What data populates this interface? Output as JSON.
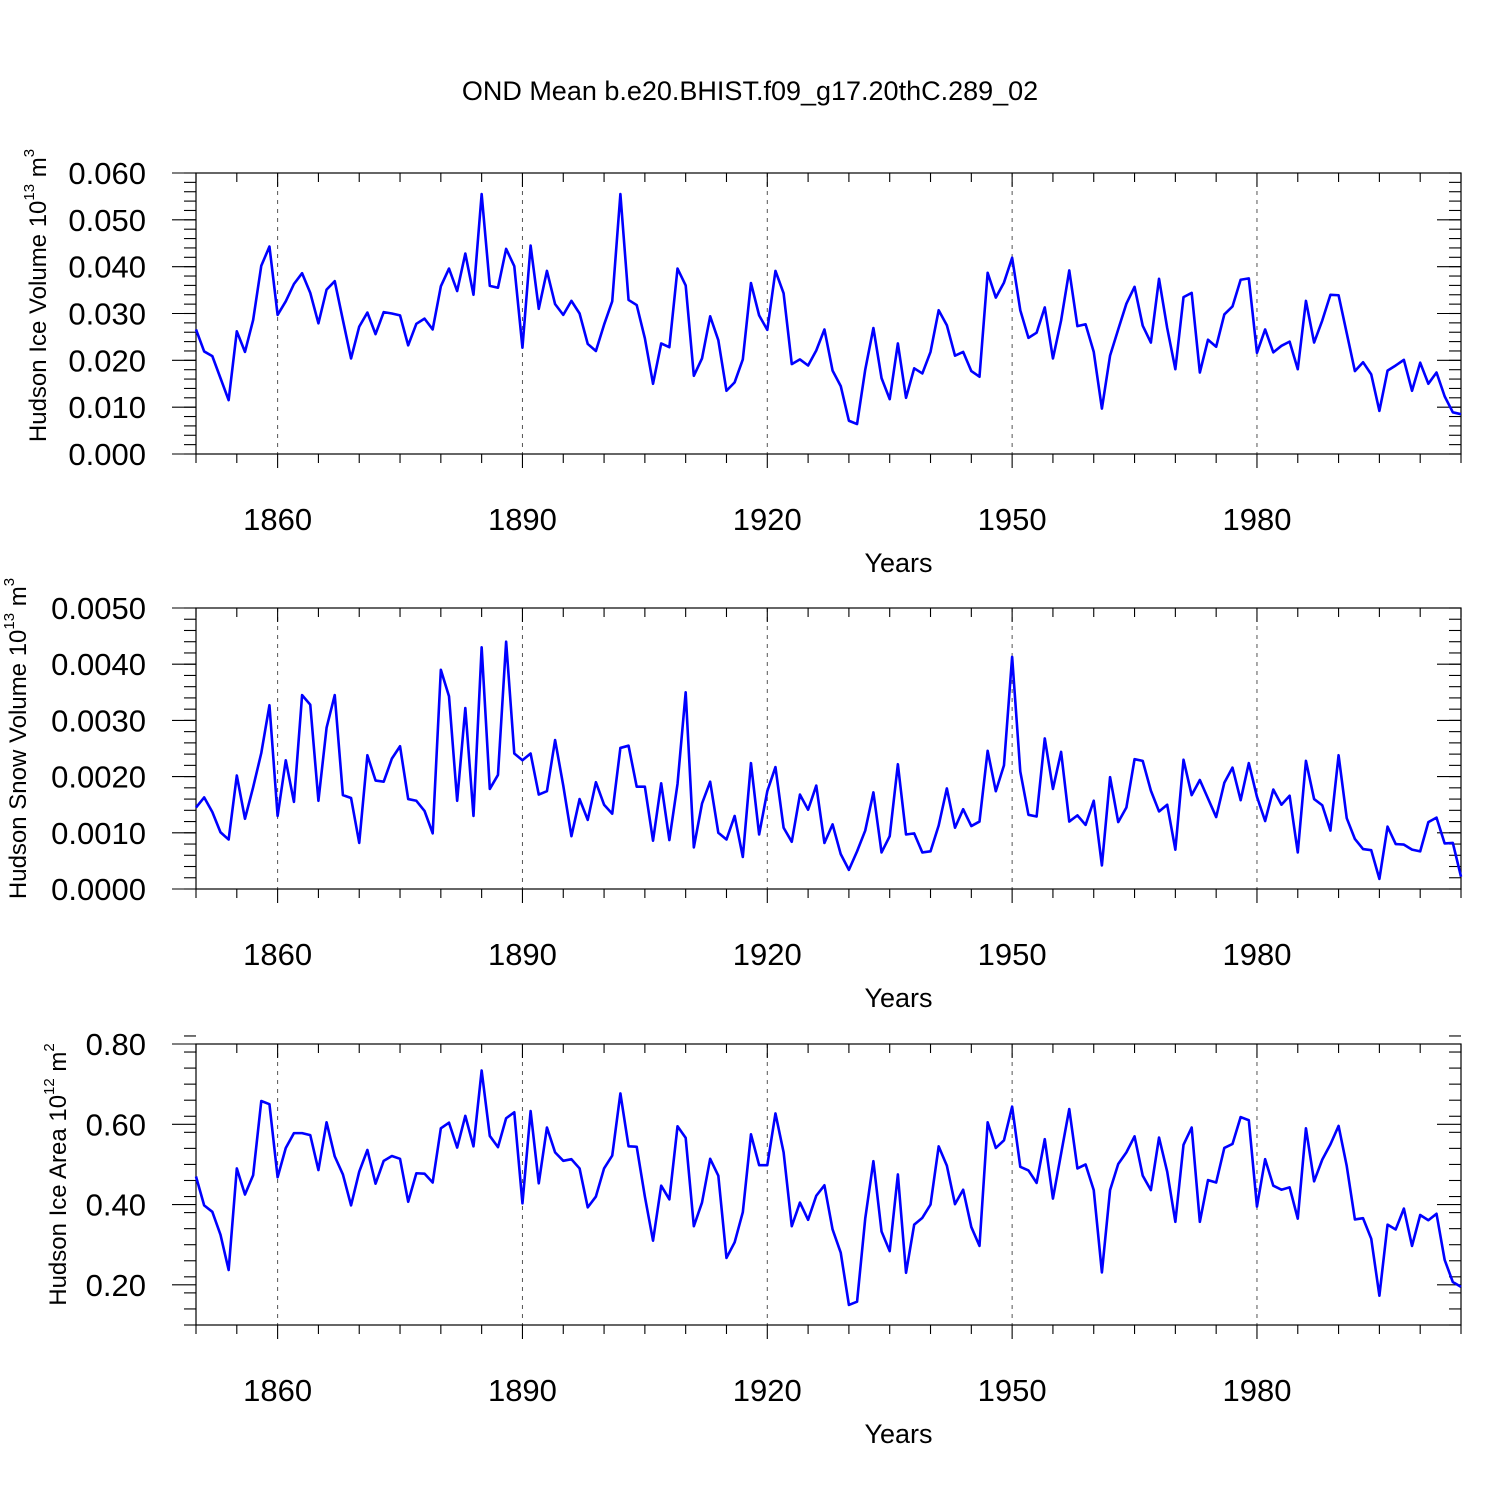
{
  "chart_data": {
    "title": "OND Mean b.e20.BHIST.f09_g17.20thC.289_02",
    "type": "line",
    "panels": [
      {
        "id": "ice-volume",
        "ylabel": {
          "base": "Hudson Ice Volume 10",
          "exp": "13",
          "unit": " m",
          "unit_exp": "3"
        },
        "xlabel": "Years",
        "xlim": [
          1850,
          2005
        ],
        "ylim": [
          0,
          0.06
        ],
        "major_y": [
          0,
          0.01,
          0.02,
          0.03,
          0.04,
          0.05,
          0.06
        ],
        "ytick_labels": [
          "0.000",
          "0.010",
          "0.020",
          "0.030",
          "0.040",
          "0.050",
          "0.060"
        ],
        "minor_y_step": 0.002,
        "series": [
          {
            "name": "Hudson Ice Volume",
            "color": "#0000ff",
            "x_start": 1850,
            "values": [
              0.0266,
              0.0219,
              0.0209,
              0.0162,
              0.0115,
              0.0262,
              0.0218,
              0.0286,
              0.0402,
              0.0443,
              0.0297,
              0.0326,
              0.0363,
              0.0386,
              0.0344,
              0.0279,
              0.0351,
              0.0369,
              0.0286,
              0.0204,
              0.0272,
              0.0302,
              0.0256,
              0.0303,
              0.03,
              0.0296,
              0.0232,
              0.0278,
              0.0289,
              0.0266,
              0.0358,
              0.0396,
              0.0348,
              0.0428,
              0.034,
              0.0555,
              0.0359,
              0.0355,
              0.0438,
              0.0401,
              0.0227,
              0.0445,
              0.031,
              0.0391,
              0.032,
              0.0297,
              0.0327,
              0.03,
              0.0235,
              0.022,
              0.0276,
              0.0326,
              0.0555,
              0.0329,
              0.0318,
              0.0247,
              0.015,
              0.0236,
              0.0228,
              0.0396,
              0.036,
              0.0167,
              0.0204,
              0.0294,
              0.0243,
              0.0135,
              0.0153,
              0.0202,
              0.0365,
              0.0296,
              0.0265,
              0.0391,
              0.0343,
              0.0192,
              0.0202,
              0.0189,
              0.0221,
              0.0266,
              0.0178,
              0.0145,
              0.0071,
              0.0064,
              0.018,
              0.0269,
              0.0162,
              0.0117,
              0.0236,
              0.012,
              0.0183,
              0.0172,
              0.0218,
              0.0307,
              0.0275,
              0.021,
              0.0218,
              0.0177,
              0.0165,
              0.0387,
              0.0334,
              0.0366,
              0.0419,
              0.0307,
              0.0248,
              0.0259,
              0.0313,
              0.0204,
              0.0285,
              0.0392,
              0.0273,
              0.0277,
              0.0218,
              0.0097,
              0.021,
              0.0266,
              0.0321,
              0.0357,
              0.0274,
              0.0238,
              0.0374,
              0.0269,
              0.0181,
              0.0335,
              0.0344,
              0.0174,
              0.0244,
              0.0229,
              0.0298,
              0.0315,
              0.0372,
              0.0375,
              0.0216,
              0.0266,
              0.0217,
              0.0231,
              0.024,
              0.0181,
              0.0327,
              0.0238,
              0.0285,
              0.034,
              0.0339,
              0.0258,
              0.0177,
              0.0196,
              0.017,
              0.0092,
              0.0178,
              0.0189,
              0.0201,
              0.0135,
              0.0195,
              0.015,
              0.0174,
              0.0123,
              0.0089,
              0.0085
            ]
          }
        ]
      },
      {
        "id": "snow-volume",
        "ylabel": {
          "base": "Hudson Snow Volume 10",
          "exp": "13",
          "unit": " m",
          "unit_exp": "3"
        },
        "xlabel": "Years",
        "xlim": [
          1850,
          2005
        ],
        "ylim": [
          0,
          0.005
        ],
        "major_y": [
          0,
          0.001,
          0.002,
          0.003,
          0.004,
          0.005
        ],
        "ytick_labels": [
          "0.0000",
          "0.0010",
          "0.0020",
          "0.0030",
          "0.0040",
          "0.0050"
        ],
        "minor_y_step": 0.0002,
        "series": [
          {
            "name": "Hudson Snow Volume",
            "color": "#0000ff",
            "x_start": 1850,
            "values": [
              0.00145,
              0.00163,
              0.00137,
              0.00101,
              0.00088,
              0.00202,
              0.00125,
              0.00181,
              0.00242,
              0.00327,
              0.0013,
              0.00229,
              0.00155,
              0.00345,
              0.00328,
              0.00157,
              0.00287,
              0.00345,
              0.00167,
              0.00162,
              0.00082,
              0.00238,
              0.00193,
              0.00191,
              0.00232,
              0.00254,
              0.0016,
              0.00157,
              0.00139,
              0.00099,
              0.0039,
              0.00343,
              0.00157,
              0.00322,
              0.0013,
              0.0043,
              0.00178,
              0.00203,
              0.0044,
              0.00241,
              0.00229,
              0.00241,
              0.00168,
              0.00174,
              0.00265,
              0.00184,
              0.00094,
              0.0016,
              0.00123,
              0.0019,
              0.0015,
              0.00134,
              0.00251,
              0.00255,
              0.00182,
              0.00182,
              0.00086,
              0.00188,
              0.00087,
              0.00187,
              0.0035,
              0.00074,
              0.00152,
              0.00191,
              0.001,
              0.00088,
              0.0013,
              0.00057,
              0.00224,
              0.00097,
              0.00174,
              0.00217,
              0.00109,
              0.00084,
              0.00168,
              0.00141,
              0.00184,
              0.00082,
              0.00115,
              0.00062,
              0.00034,
              0.00067,
              0.00104,
              0.00172,
              0.00065,
              0.00094,
              0.00222,
              0.00097,
              0.00099,
              0.00065,
              0.00067,
              0.00113,
              0.00179,
              0.00109,
              0.00142,
              0.00112,
              0.0012,
              0.00246,
              0.00174,
              0.0022,
              0.00413,
              0.00209,
              0.00132,
              0.00129,
              0.00268,
              0.00178,
              0.00244,
              0.0012,
              0.00131,
              0.00114,
              0.00157,
              0.00042,
              0.00199,
              0.00119,
              0.00145,
              0.00231,
              0.00228,
              0.00175,
              0.00138,
              0.0015,
              0.0007,
              0.0023,
              0.00167,
              0.00194,
              0.00161,
              0.00128,
              0.00189,
              0.00216,
              0.00158,
              0.00224,
              0.00164,
              0.00121,
              0.00177,
              0.0015,
              0.00166,
              0.00065,
              0.00228,
              0.0016,
              0.00149,
              0.00104,
              0.00238,
              0.00126,
              0.00089,
              0.00071,
              0.00069,
              0.00018,
              0.00111,
              0.0008,
              0.00079,
              0.0007,
              0.00067,
              0.00119,
              0.00127,
              0.00081,
              0.00082,
              0.00022
            ]
          }
        ]
      },
      {
        "id": "ice-area",
        "ylabel": {
          "base": "Hudson Ice Area 10",
          "exp": "12",
          "unit": " m",
          "unit_exp": "2"
        },
        "xlabel": "Years",
        "xlim": [
          1850,
          2005
        ],
        "ylim": [
          0.1,
          0.8
        ],
        "major_y": [
          0.2,
          0.4,
          0.6,
          0.8
        ],
        "ytick_labels": [
          "0.20",
          "0.40",
          "0.60",
          "0.80"
        ],
        "minor_y_step": 0.04,
        "series": [
          {
            "name": "Hudson Ice Area",
            "color": "#0000ff",
            "x_start": 1850,
            "values": [
              0.47,
              0.398,
              0.382,
              0.325,
              0.237,
              0.49,
              0.425,
              0.473,
              0.658,
              0.65,
              0.468,
              0.541,
              0.578,
              0.578,
              0.573,
              0.486,
              0.605,
              0.52,
              0.475,
              0.398,
              0.482,
              0.536,
              0.452,
              0.509,
              0.521,
              0.514,
              0.407,
              0.478,
              0.477,
              0.455,
              0.59,
              0.604,
              0.542,
              0.621,
              0.545,
              0.734,
              0.571,
              0.543,
              0.615,
              0.63,
              0.403,
              0.633,
              0.453,
              0.592,
              0.53,
              0.509,
              0.513,
              0.49,
              0.393,
              0.42,
              0.49,
              0.522,
              0.677,
              0.545,
              0.544,
              0.42,
              0.31,
              0.447,
              0.413,
              0.595,
              0.566,
              0.346,
              0.405,
              0.514,
              0.472,
              0.267,
              0.306,
              0.381,
              0.575,
              0.498,
              0.498,
              0.627,
              0.53,
              0.346,
              0.405,
              0.362,
              0.422,
              0.448,
              0.338,
              0.28,
              0.15,
              0.158,
              0.365,
              0.508,
              0.333,
              0.284,
              0.475,
              0.23,
              0.35,
              0.367,
              0.4,
              0.545,
              0.497,
              0.401,
              0.437,
              0.344,
              0.297,
              0.605,
              0.541,
              0.56,
              0.644,
              0.494,
              0.485,
              0.454,
              0.563,
              0.415,
              0.527,
              0.638,
              0.49,
              0.5,
              0.436,
              0.231,
              0.436,
              0.501,
              0.53,
              0.57,
              0.472,
              0.436,
              0.567,
              0.482,
              0.357,
              0.549,
              0.592,
              0.357,
              0.461,
              0.455,
              0.541,
              0.551,
              0.618,
              0.61,
              0.395,
              0.513,
              0.447,
              0.437,
              0.443,
              0.365,
              0.59,
              0.458,
              0.512,
              0.55,
              0.596,
              0.496,
              0.363,
              0.366,
              0.315,
              0.173,
              0.35,
              0.338,
              0.39,
              0.297,
              0.374,
              0.361,
              0.377,
              0.262,
              0.207,
              0.195
            ]
          }
        ]
      }
    ],
    "xticks": [
      1860,
      1890,
      1920,
      1950,
      1980
    ],
    "xtick_labels": [
      "1860",
      "1890",
      "1920",
      "1950",
      "1980"
    ],
    "minor_x_step": 5,
    "grid": "vertical dashed at major x ticks"
  }
}
